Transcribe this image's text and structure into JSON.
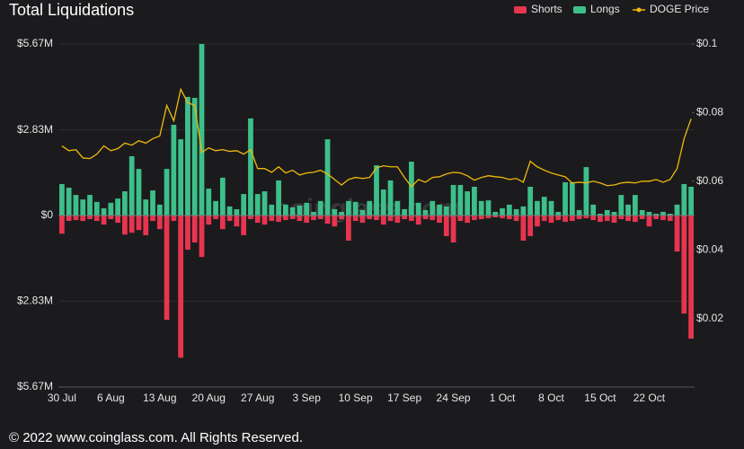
{
  "chart_data": {
    "type": "bar",
    "title": "Total Liquidations",
    "footer": "© 2022 www.coinglass.com. All Rights Reserved.",
    "watermark": "coinglass.com",
    "categories": [
      "30 Jul",
      null,
      null,
      null,
      null,
      null,
      null,
      "6 Aug",
      null,
      null,
      null,
      null,
      null,
      null,
      "13 Aug",
      null,
      null,
      null,
      null,
      null,
      null,
      "20 Aug",
      null,
      null,
      null,
      null,
      null,
      null,
      "27 Aug",
      null,
      null,
      null,
      null,
      null,
      null,
      "3 Sep",
      null,
      null,
      null,
      null,
      null,
      null,
      "10 Sep",
      null,
      null,
      null,
      null,
      null,
      null,
      "17 Sep",
      null,
      null,
      null,
      null,
      null,
      null,
      "24 Sep",
      null,
      null,
      null,
      null,
      null,
      null,
      "1 Oct",
      null,
      null,
      null,
      null,
      null,
      null,
      "8 Oct",
      null,
      null,
      null,
      null,
      null,
      null,
      "15 Oct",
      null,
      null,
      null,
      null,
      null,
      null,
      "22 Oct",
      null,
      null,
      null,
      null,
      null,
      null
    ],
    "series": [
      {
        "name": "Shorts",
        "type": "bar",
        "color": "#e8354f",
        "values": [
          -0.6,
          -0.18,
          -0.15,
          -0.18,
          -0.12,
          -0.18,
          -0.3,
          -0.12,
          -0.24,
          -0.63,
          -0.57,
          -0.48,
          -0.65,
          -0.18,
          -0.45,
          -3.45,
          -0.18,
          -4.7,
          -1.13,
          -0.89,
          -1.37,
          -0.3,
          -0.12,
          -0.45,
          -0.18,
          -0.36,
          -0.65,
          -0.12,
          -0.24,
          -0.3,
          -0.18,
          -0.21,
          -0.15,
          -0.12,
          -0.18,
          -0.24,
          -0.15,
          -0.12,
          -0.27,
          -0.36,
          -0.12,
          -0.83,
          -0.18,
          -0.24,
          -0.12,
          -0.15,
          -0.3,
          -0.18,
          -0.24,
          -0.12,
          -0.18,
          -0.3,
          -0.12,
          -0.15,
          -0.24,
          -0.68,
          -0.89,
          -0.18,
          -0.24,
          -0.15,
          -0.12,
          -0.09,
          -0.06,
          -0.09,
          -0.12,
          -0.18,
          -0.83,
          -0.68,
          -0.36,
          -0.18,
          -0.24,
          -0.15,
          -0.21,
          -0.18,
          -0.12,
          -0.09,
          -0.15,
          -0.21,
          -0.18,
          -0.24,
          -0.12,
          -0.18,
          -0.21,
          -0.12,
          -0.36,
          -0.12,
          -0.15,
          -0.18,
          -1.19,
          -3.24,
          -4.07
        ]
      },
      {
        "name": "Longs",
        "type": "bar",
        "color": "#3dbf8a",
        "values": [
          1.04,
          0.92,
          0.68,
          0.53,
          0.68,
          0.45,
          0.24,
          0.42,
          0.56,
          0.8,
          1.96,
          1.54,
          0.53,
          0.83,
          0.36,
          1.54,
          3.0,
          2.52,
          3.92,
          3.89,
          5.67,
          0.89,
          0.48,
          1.25,
          0.3,
          0.21,
          0.71,
          3.21,
          0.71,
          0.8,
          0.36,
          1.16,
          0.36,
          0.27,
          0.33,
          0.42,
          0.12,
          0.48,
          2.52,
          0.21,
          0.12,
          0.48,
          0.45,
          0.18,
          0.48,
          1.66,
          0.86,
          1.16,
          0.48,
          0.21,
          1.78,
          0.42,
          0.18,
          0.48,
          0.36,
          0.3,
          1.01,
          1.01,
          0.8,
          0.95,
          0.48,
          0.5,
          0.12,
          0.24,
          0.36,
          0.21,
          0.3,
          0.95,
          0.48,
          0.62,
          0.48,
          0.12,
          1.1,
          1.1,
          0.18,
          1.6,
          0.36,
          0.06,
          0.18,
          0.12,
          0.68,
          0.36,
          0.68,
          0.18,
          0.12,
          0.06,
          0.12,
          0.06,
          0.36,
          1.04,
          0.95
        ]
      },
      {
        "name": "DOGE Price",
        "type": "line",
        "axis": "y2",
        "color": "#f0b90b",
        "values": [
          0.0703,
          0.0689,
          0.0692,
          0.0668,
          0.0666,
          0.0679,
          0.0703,
          0.0689,
          0.0695,
          0.0711,
          0.0705,
          0.0718,
          0.0711,
          0.0724,
          0.0732,
          0.0821,
          0.0776,
          0.0868,
          0.0829,
          0.0821,
          0.0684,
          0.0697,
          0.0689,
          0.0692,
          0.0687,
          0.0689,
          0.0679,
          0.0692,
          0.0637,
          0.0637,
          0.0626,
          0.0642,
          0.0624,
          0.0632,
          0.0618,
          0.0624,
          0.0626,
          0.0632,
          0.0621,
          0.0605,
          0.0589,
          0.0605,
          0.0611,
          0.0608,
          0.0611,
          0.0639,
          0.0645,
          0.0642,
          0.0642,
          0.0611,
          0.0584,
          0.0605,
          0.0597,
          0.0611,
          0.0613,
          0.0621,
          0.0626,
          0.0624,
          0.0616,
          0.0603,
          0.0611,
          0.0616,
          0.0613,
          0.0611,
          0.0605,
          0.0608,
          0.0597,
          0.0658,
          0.0642,
          0.0632,
          0.0624,
          0.0618,
          0.0613,
          0.0595,
          0.0597,
          0.0595,
          0.06,
          0.0595,
          0.0587,
          0.0589,
          0.0595,
          0.0597,
          0.0595,
          0.06,
          0.06,
          0.0605,
          0.0597,
          0.0605,
          0.0637,
          0.0724,
          0.0782
        ]
      }
    ],
    "ylim": [
      -5.67,
      5.67
    ],
    "yticks": [
      {
        "value": 5.67,
        "label": "$5.67M"
      },
      {
        "value": 2.83,
        "label": "$2.83M"
      },
      {
        "value": 0,
        "label": "$0"
      },
      {
        "value": -2.83,
        "label": "$2.83M"
      },
      {
        "value": -5.67,
        "label": "$5.67M"
      }
    ],
    "y2lim": [
      0,
      0.1
    ],
    "y2ticks": [
      {
        "value": 0.1,
        "label": "$0.1"
      },
      {
        "value": 0.08,
        "label": "$0.08"
      },
      {
        "value": 0.06,
        "label": "$0.06"
      },
      {
        "value": 0.04,
        "label": "$0.04"
      },
      {
        "value": 0.02,
        "label": "$0.02"
      }
    ],
    "legend": "top-right",
    "grid": true
  }
}
